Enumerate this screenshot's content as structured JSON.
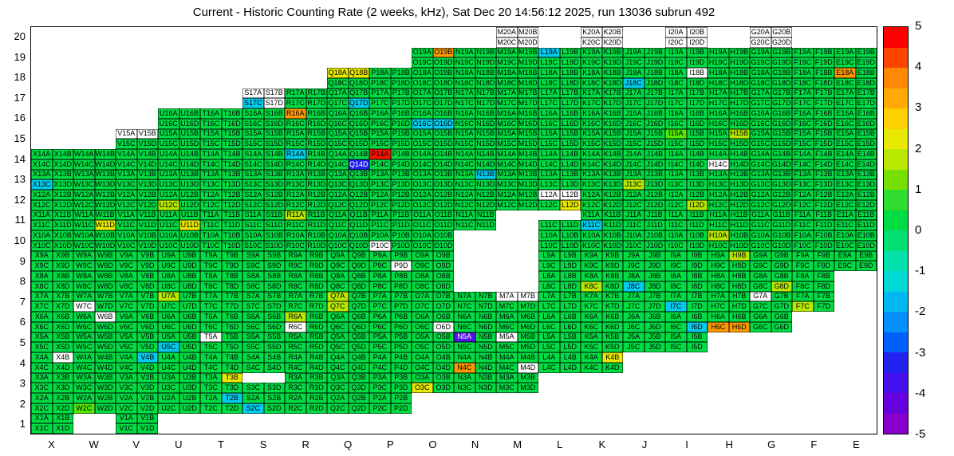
{
  "title": "Current - Historic Counting Rate (2 weeks, kHz), Sat Dec 20 14:56:12 2025, run 13036 subrun 492",
  "chart_data": {
    "type": "heatmap",
    "x_categories": [
      "X",
      "W",
      "V",
      "U",
      "T",
      "S",
      "R",
      "Q",
      "P",
      "O",
      "N",
      "M",
      "L",
      "K",
      "J",
      "I",
      "H",
      "G",
      "F",
      "E"
    ],
    "y_categories": [
      20,
      19,
      18,
      17,
      16,
      15,
      14,
      13,
      12,
      11,
      10,
      9,
      8,
      7,
      6,
      5,
      4,
      3,
      2,
      1
    ],
    "colorbar": {
      "min": -5,
      "max": 5,
      "ticks": [
        "5",
        "4",
        "3",
        "2",
        "1",
        "0",
        "-1",
        "-2",
        "-3",
        "-4",
        "-5"
      ],
      "band_colors_top_to_bottom": [
        "#ff0000",
        "#ff4400",
        "#ff8800",
        "#ffaa00",
        "#ffd000",
        "#e8e800",
        "#b8e800",
        "#78e000",
        "#30dd30",
        "#00dc43",
        "#00e070",
        "#00e0a8",
        "#00d8d8",
        "#00b8f0",
        "#0090ff",
        "#0060ff",
        "#2222ee",
        "#4411ee",
        "#6600dd",
        "#8800cc"
      ]
    },
    "value_colors": {
      "g": "#00dc43",
      "m": "#55e800",
      "Y": "#b8e800",
      "y": "#e8e800",
      "o": "#ff9900",
      "r": "#ff1100",
      "c": "#00ccee",
      "b": "#2222ee",
      "p": "#5511ee",
      "w": "#ffffff",
      "x": "#ffffff"
    },
    "sub_labels": [
      "A",
      "B",
      "C",
      "D"
    ],
    "rows": [
      {
        "row": 20,
        "cells": {
          "M": "wwww",
          "K": "wwww",
          "I": "wwww",
          "G": "wwww"
        }
      },
      {
        "row": 19,
        "cells": {
          "O": "gogg",
          "N": "gggg",
          "M": "gggg",
          "L": "cggg",
          "K": "gggg",
          "J": "gggg",
          "I": "gggg",
          "H": "gggg",
          "G": "gggg",
          "F": "gggg",
          "E": "gggg"
        }
      },
      {
        "row": 18,
        "cells": {
          "Q": "yygg",
          "P": "gggg",
          "O": "gggg",
          "N": "gggg",
          "M": "gggg",
          "L": "gggg",
          "K": "gggg",
          "J": "ggcg",
          "I": "gwgg",
          "H": "gggg",
          "G": "gggg",
          "F": "gggg",
          "E": "oggg"
        }
      },
      {
        "row": 17,
        "cells": {
          "S": "wwcw",
          "R": "gggg",
          "Q": "gggc",
          "P": "gggg",
          "O": "gggg",
          "N": "gggg",
          "M": "gggg",
          "L": "gggg",
          "K": "gggg",
          "J": "gggg",
          "I": "gggg",
          "H": "gggg",
          "G": "gggg",
          "F": "gggg",
          "E": "gggg"
        }
      },
      {
        "row": 16,
        "cells": {
          "U": "gggg",
          "T": "gggg",
          "S": "gggg",
          "R": "oggg",
          "Q": "gggg",
          "P": "gggg",
          "O": "ggcc",
          "N": "gggg",
          "M": "gggg",
          "L": "gggg",
          "K": "gggg",
          "J": "gggg",
          "I": "gggg",
          "H": "gggg",
          "G": "gggg",
          "F": "gggg",
          "E": "gggg"
        }
      },
      {
        "row": 15,
        "cells": {
          "V": "wwgg",
          "U": "gggg",
          "T": "gggg",
          "S": "gggg",
          "R": "gggg",
          "Q": "gggg",
          "P": "gggg",
          "O": "gggg",
          "N": "gggg",
          "M": "gggg",
          "L": "gggg",
          "K": "gggg",
          "J": "gggg",
          "I": "mggg",
          "H": "gYgg",
          "G": "gggg",
          "F": "gggg",
          "E": "gggg"
        }
      },
      {
        "row": 14,
        "cells": {
          "X": "gggg",
          "W": "gggg",
          "V": "gggg",
          "U": "gggg",
          "T": "gggg",
          "S": "gggg",
          "R": "cggg",
          "Q": "gggb",
          "P": "rggg",
          "O": "gggg",
          "N": "gggg",
          "M": "gggg",
          "L": "gggg",
          "K": "gggg",
          "J": "gggg",
          "I": "gggg",
          "H": "ggwg",
          "G": "gggg",
          "F": "gggg",
          "E": "gggg"
        }
      },
      {
        "row": 13,
        "cells": {
          "X": "ggcg",
          "W": "gggg",
          "V": "gggg",
          "U": "gggg",
          "T": "gggg",
          "S": "gggg",
          "R": "gggg",
          "Q": "gggg",
          "P": "gggg",
          "O": "gggg",
          "N": "gcgg",
          "M": "gggg",
          "L": "gggg",
          "K": "gggg",
          "J": "ggYg",
          "I": "gggg",
          "H": "gggg",
          "G": "gggg",
          "F": "gggg",
          "E": "gggg"
        }
      },
      {
        "row": 12,
        "cells": {
          "X": "gggg",
          "W": "gggg",
          "V": "gggg",
          "U": "ggYg",
          "T": "gggg",
          "S": "gggg",
          "R": "gggg",
          "Q": "gggg",
          "P": "gggg",
          "O": "gggg",
          "N": "gggg",
          "M": "gggg",
          "L": "wwgy",
          "K": "gggg",
          "J": "gggg",
          "I": "gggY",
          "H": "gggg",
          "G": "gggg",
          "F": "gggg",
          "E": "gggg"
        }
      },
      {
        "row": 11,
        "cells": {
          "X": "gggg",
          "W": "gggy",
          "V": "gggg",
          "U": "gggy",
          "T": "gggg",
          "S": "gggg",
          "R": "Yggg",
          "Q": "gggg",
          "P": "gggg",
          "O": "gggg",
          "N": "gggg",
          "L": "xxgg",
          "K": "ggcg",
          "J": "gggg",
          "I": "gggg",
          "H": "gggg",
          "G": "gggg",
          "F": "gggg",
          "E": "gggg"
        }
      },
      {
        "row": 10,
        "cells": {
          "X": "gggg",
          "W": "gggg",
          "V": "gggg",
          "U": "gggg",
          "T": "gggg",
          "S": "gggg",
          "R": "gggg",
          "Q": "gggg",
          "P": "ggwg",
          "O": "gggg",
          "L": "gggg",
          "K": "gggg",
          "J": "gggg",
          "I": "gggg",
          "H": "Yggg",
          "G": "gggg",
          "F": "gggg",
          "E": "gggg"
        }
      },
      {
        "row": 9,
        "cells": {
          "X": "gggg",
          "W": "gggg",
          "V": "gggg",
          "U": "gggg",
          "T": "gggg",
          "S": "gggg",
          "R": "gggg",
          "Q": "gggg",
          "P": "gggw",
          "O": "gggg",
          "L": "gggg",
          "K": "gggg",
          "J": "gggg",
          "I": "gggg",
          "H": "gYgg",
          "G": "gggg",
          "F": "gggg",
          "E": "gggg"
        }
      },
      {
        "row": 8,
        "cells": {
          "X": "gggg",
          "W": "gggg",
          "V": "gggg",
          "U": "gggg",
          "T": "gggg",
          "S": "gggg",
          "R": "gggg",
          "Q": "gggg",
          "P": "gggg",
          "O": "gggg",
          "L": "gggg",
          "K": "ggYg",
          "J": "ggcg",
          "I": "gggg",
          "H": "gggg",
          "G": "gggY",
          "F": "gggg"
        }
      },
      {
        "row": 7,
        "cells": {
          "X": "gggg",
          "W": "ggwg",
          "V": "gggg",
          "U": "Yggg",
          "T": "gggg",
          "S": "gggg",
          "R": "gggg",
          "Q": "YgYg",
          "P": "gggg",
          "O": "gggg",
          "N": "gggg",
          "M": "wwgg",
          "L": "gggg",
          "K": "gggg",
          "J": "gggg",
          "I": "ggcg",
          "H": "gggg",
          "G": "wggg",
          "F": "ggYg"
        }
      },
      {
        "row": 6,
        "cells": {
          "X": "gggg",
          "W": "gwgg",
          "V": "gggg",
          "U": "gggg",
          "T": "gggg",
          "S": "gggg",
          "R": "Ygwg",
          "Q": "gggg",
          "P": "gggg",
          "O": "gggw",
          "N": "gggg",
          "M": "gggg",
          "L": "gggg",
          "K": "gggg",
          "J": "gggg",
          "I": "gggc",
          "H": "ggoo",
          "G": "gggg"
        }
      },
      {
        "row": 5,
        "cells": {
          "X": "gggg",
          "W": "gggg",
          "V": "gggg",
          "U": "ggcg",
          "T": "wggg",
          "S": "gggg",
          "R": "gggg",
          "Q": "gggg",
          "P": "gggg",
          "O": "gggg",
          "N": "pggg",
          "M": "wggg",
          "L": "gggg",
          "K": "gggg",
          "J": "gggg",
          "I": "gggg"
        }
      },
      {
        "row": 4,
        "cells": {
          "X": "gwgg",
          "W": "gggg",
          "V": "gcgg",
          "U": "gggg",
          "T": "gggg",
          "S": "gggg",
          "R": "gggg",
          "Q": "gggg",
          "P": "gggg",
          "O": "gggg",
          "N": "ggog",
          "M": "gggw",
          "L": "gggg",
          "K": "gygg"
        }
      },
      {
        "row": 3,
        "cells": {
          "X": "gggg",
          "W": "gggg",
          "V": "gggg",
          "U": "gggg",
          "T": "gygg",
          "S": "xxgg",
          "R": "gggg",
          "Q": "gggg",
          "P": "gggg",
          "O": "ggyg",
          "N": "gggg",
          "M": "gggg"
        }
      },
      {
        "row": 2,
        "cells": {
          "X": "gggg",
          "W": "ggmg",
          "V": "gggg",
          "U": "gggg",
          "T": "gcgg",
          "S": "ggcg",
          "R": "gggg",
          "Q": "gggg",
          "P": "gggg"
        }
      },
      {
        "row": 1,
        "cells": {
          "X": "gggg",
          "V": "gggg"
        }
      }
    ]
  }
}
